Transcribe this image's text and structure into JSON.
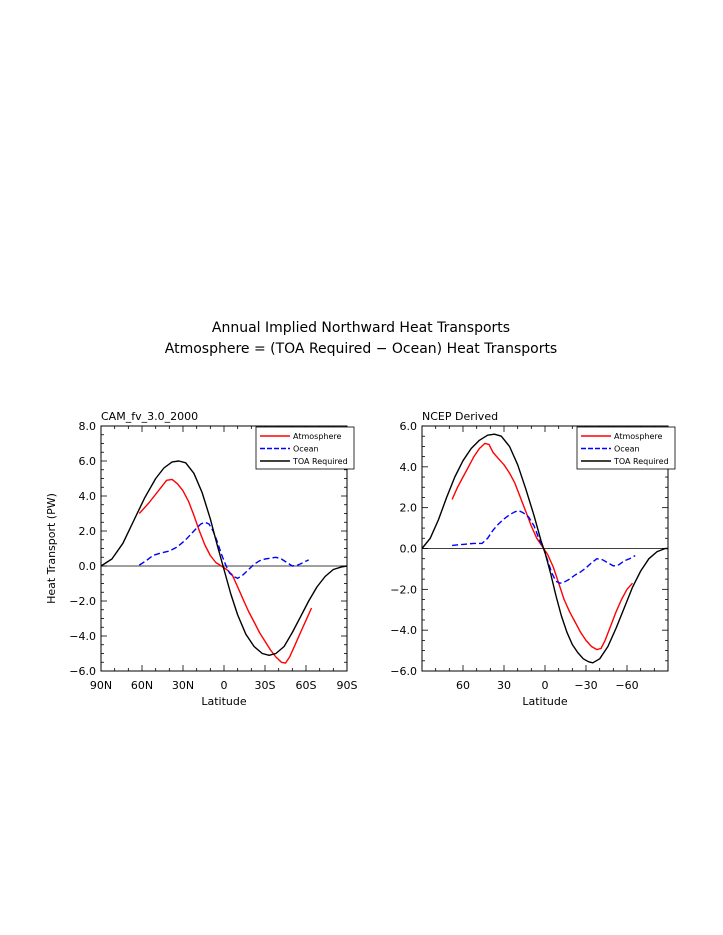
{
  "figure": {
    "title_line1": "Annual Implied Northward Heat Transports",
    "title_line2": "Atmosphere = (TOA Required − Ocean) Heat Transports"
  },
  "chart_data": [
    {
      "type": "line",
      "panel_title": "CAM_fv_3.0_2000",
      "xlabel": "Latitude",
      "ylabel": "Heat Transport (PW)",
      "xlim": [
        90,
        -90
      ],
      "ylim": [
        -6,
        8
      ],
      "x_ticks": [
        90,
        60,
        30,
        0,
        -30,
        -60,
        -90
      ],
      "x_tick_labels": [
        "90N",
        "60N",
        "30N",
        "0",
        "30S",
        "60S",
        "90S"
      ],
      "y_ticks": [
        -6,
        -4,
        -2,
        0,
        2,
        4,
        6,
        8
      ],
      "y_tick_labels": [
        "−6.0",
        "−4.0",
        "−2.0",
        "0.0",
        "2.0",
        "4.0",
        "6.0",
        "8.0"
      ],
      "zero_line": true,
      "legend_position": "top-right",
      "series": [
        {
          "name": "Atmosphere",
          "color": "#ff0000",
          "dash": "solid",
          "points": [
            [
              62,
              3.0
            ],
            [
              55,
              3.6
            ],
            [
              48,
              4.3
            ],
            [
              42,
              4.9
            ],
            [
              38,
              4.95
            ],
            [
              34,
              4.7
            ],
            [
              30,
              4.3
            ],
            [
              26,
              3.7
            ],
            [
              22,
              2.9
            ],
            [
              18,
              2.0
            ],
            [
              14,
              1.2
            ],
            [
              10,
              0.6
            ],
            [
              6,
              0.2
            ],
            [
              2,
              0.0
            ],
            [
              -2,
              -0.2
            ],
            [
              -6,
              -0.5
            ],
            [
              -10,
              -1.2
            ],
            [
              -14,
              -1.9
            ],
            [
              -18,
              -2.6
            ],
            [
              -22,
              -3.2
            ],
            [
              -26,
              -3.8
            ],
            [
              -30,
              -4.3
            ],
            [
              -34,
              -4.8
            ],
            [
              -38,
              -5.2
            ],
            [
              -42,
              -5.5
            ],
            [
              -45,
              -5.55
            ],
            [
              -48,
              -5.2
            ],
            [
              -52,
              -4.5
            ],
            [
              -56,
              -3.8
            ],
            [
              -60,
              -3.1
            ],
            [
              -64,
              -2.4
            ]
          ]
        },
        {
          "name": "Ocean",
          "color": "#0000ff",
          "dash": "dashed",
          "points": [
            [
              62,
              0.05
            ],
            [
              57,
              0.3
            ],
            [
              52,
              0.6
            ],
            [
              46,
              0.75
            ],
            [
              40,
              0.85
            ],
            [
              34,
              1.1
            ],
            [
              28,
              1.5
            ],
            [
              22,
              2.0
            ],
            [
              17,
              2.4
            ],
            [
              14,
              2.5
            ],
            [
              11,
              2.4
            ],
            [
              8,
              2.0
            ],
            [
              5,
              1.4
            ],
            [
              2,
              0.7
            ],
            [
              -1,
              0.1
            ],
            [
              -4,
              -0.4
            ],
            [
              -7,
              -0.6
            ],
            [
              -10,
              -0.7
            ],
            [
              -14,
              -0.5
            ],
            [
              -18,
              -0.2
            ],
            [
              -22,
              0.1
            ],
            [
              -26,
              0.3
            ],
            [
              -30,
              0.4
            ],
            [
              -34,
              0.45
            ],
            [
              -38,
              0.5
            ],
            [
              -42,
              0.4
            ],
            [
              -46,
              0.2
            ],
            [
              -50,
              0.0
            ],
            [
              -54,
              0.05
            ],
            [
              -58,
              0.2
            ],
            [
              -62,
              0.35
            ]
          ]
        },
        {
          "name": "TOA Required",
          "color": "#000000",
          "dash": "solid",
          "points": [
            [
              90,
              0.0
            ],
            [
              82,
              0.4
            ],
            [
              74,
              1.3
            ],
            [
              66,
              2.6
            ],
            [
              58,
              3.9
            ],
            [
              50,
              5.0
            ],
            [
              44,
              5.6
            ],
            [
              38,
              5.95
            ],
            [
              33,
              6.0
            ],
            [
              28,
              5.9
            ],
            [
              22,
              5.3
            ],
            [
              16,
              4.2
            ],
            [
              10,
              2.7
            ],
            [
              5,
              1.2
            ],
            [
              0,
              -0.2
            ],
            [
              -5,
              -1.6
            ],
            [
              -10,
              -2.8
            ],
            [
              -16,
              -3.9
            ],
            [
              -22,
              -4.6
            ],
            [
              -28,
              -5.0
            ],
            [
              -33,
              -5.1
            ],
            [
              -38,
              -5.0
            ],
            [
              -44,
              -4.6
            ],
            [
              -50,
              -3.8
            ],
            [
              -56,
              -2.9
            ],
            [
              -62,
              -2.0
            ],
            [
              -68,
              -1.2
            ],
            [
              -74,
              -0.6
            ],
            [
              -80,
              -0.2
            ],
            [
              -86,
              -0.05
            ],
            [
              -90,
              0.0
            ]
          ]
        }
      ]
    },
    {
      "type": "line",
      "panel_title": "NCEP Derived",
      "xlabel": "Latitude",
      "ylabel": "",
      "xlim": [
        90,
        -90
      ],
      "ylim": [
        -6,
        6
      ],
      "x_ticks": [
        60,
        30,
        0,
        -30,
        -60
      ],
      "x_tick_labels": [
        "60",
        "30",
        "0",
        "−30",
        "−60"
      ],
      "y_ticks": [
        -6,
        -4,
        -2,
        0,
        2,
        4,
        6
      ],
      "y_tick_labels": [
        "−6.0",
        "−4.0",
        "−2.0",
        "0.0",
        "2.0",
        "4.0",
        "6.0"
      ],
      "zero_line": true,
      "legend_position": "top-right",
      "series": [
        {
          "name": "Atmosphere",
          "color": "#ff0000",
          "dash": "solid",
          "points": [
            [
              68,
              2.4
            ],
            [
              64,
              3.0
            ],
            [
              60,
              3.5
            ],
            [
              56,
              4.0
            ],
            [
              52,
              4.5
            ],
            [
              48,
              4.9
            ],
            [
              44,
              5.15
            ],
            [
              41,
              5.1
            ],
            [
              38,
              4.7
            ],
            [
              34,
              4.4
            ],
            [
              30,
              4.1
            ],
            [
              26,
              3.7
            ],
            [
              22,
              3.2
            ],
            [
              18,
              2.5
            ],
            [
              14,
              1.8
            ],
            [
              10,
              1.1
            ],
            [
              6,
              0.5
            ],
            [
              2,
              0.1
            ],
            [
              -2,
              -0.3
            ],
            [
              -6,
              -0.9
            ],
            [
              -10,
              -1.7
            ],
            [
              -14,
              -2.5
            ],
            [
              -18,
              -3.1
            ],
            [
              -22,
              -3.6
            ],
            [
              -26,
              -4.1
            ],
            [
              -30,
              -4.5
            ],
            [
              -34,
              -4.8
            ],
            [
              -38,
              -4.95
            ],
            [
              -41,
              -4.9
            ],
            [
              -44,
              -4.5
            ],
            [
              -48,
              -3.8
            ],
            [
              -52,
              -3.1
            ],
            [
              -56,
              -2.5
            ],
            [
              -60,
              -2.0
            ],
            [
              -64,
              -1.7
            ]
          ]
        },
        {
          "name": "Ocean",
          "color": "#0000ff",
          "dash": "dashed",
          "points": [
            [
              68,
              0.15
            ],
            [
              60,
              0.2
            ],
            [
              52,
              0.25
            ],
            [
              46,
              0.25
            ],
            [
              42,
              0.5
            ],
            [
              38,
              0.9
            ],
            [
              34,
              1.2
            ],
            [
              30,
              1.45
            ],
            [
              26,
              1.65
            ],
            [
              22,
              1.8
            ],
            [
              19,
              1.85
            ],
            [
              16,
              1.75
            ],
            [
              12,
              1.55
            ],
            [
              8,
              1.1
            ],
            [
              4,
              0.4
            ],
            [
              1,
              0.0
            ],
            [
              -2,
              -0.6
            ],
            [
              -5,
              -1.2
            ],
            [
              -8,
              -1.6
            ],
            [
              -11,
              -1.7
            ],
            [
              -14,
              -1.65
            ],
            [
              -18,
              -1.5
            ],
            [
              -22,
              -1.3
            ],
            [
              -26,
              -1.15
            ],
            [
              -30,
              -0.95
            ],
            [
              -34,
              -0.7
            ],
            [
              -38,
              -0.5
            ],
            [
              -42,
              -0.55
            ],
            [
              -46,
              -0.7
            ],
            [
              -50,
              -0.85
            ],
            [
              -54,
              -0.8
            ],
            [
              -58,
              -0.6
            ],
            [
              -62,
              -0.5
            ],
            [
              -66,
              -0.35
            ]
          ]
        },
        {
          "name": "TOA Required",
          "color": "#000000",
          "dash": "solid",
          "points": [
            [
              90,
              0.0
            ],
            [
              84,
              0.5
            ],
            [
              78,
              1.4
            ],
            [
              72,
              2.5
            ],
            [
              66,
              3.5
            ],
            [
              60,
              4.3
            ],
            [
              54,
              4.9
            ],
            [
              48,
              5.3
            ],
            [
              42,
              5.55
            ],
            [
              37,
              5.6
            ],
            [
              32,
              5.5
            ],
            [
              26,
              5.0
            ],
            [
              20,
              4.1
            ],
            [
              14,
              2.9
            ],
            [
              8,
              1.6
            ],
            [
              3,
              0.4
            ],
            [
              0,
              -0.2
            ],
            [
              -4,
              -1.2
            ],
            [
              -8,
              -2.3
            ],
            [
              -12,
              -3.3
            ],
            [
              -16,
              -4.1
            ],
            [
              -20,
              -4.7
            ],
            [
              -24,
              -5.1
            ],
            [
              -28,
              -5.4
            ],
            [
              -32,
              -5.55
            ],
            [
              -35,
              -5.6
            ],
            [
              -40,
              -5.4
            ],
            [
              -46,
              -4.8
            ],
            [
              -52,
              -3.9
            ],
            [
              -58,
              -2.9
            ],
            [
              -64,
              -1.9
            ],
            [
              -70,
              -1.1
            ],
            [
              -76,
              -0.5
            ],
            [
              -82,
              -0.15
            ],
            [
              -88,
              0.0
            ],
            [
              -90,
              0.0
            ]
          ]
        }
      ]
    }
  ]
}
